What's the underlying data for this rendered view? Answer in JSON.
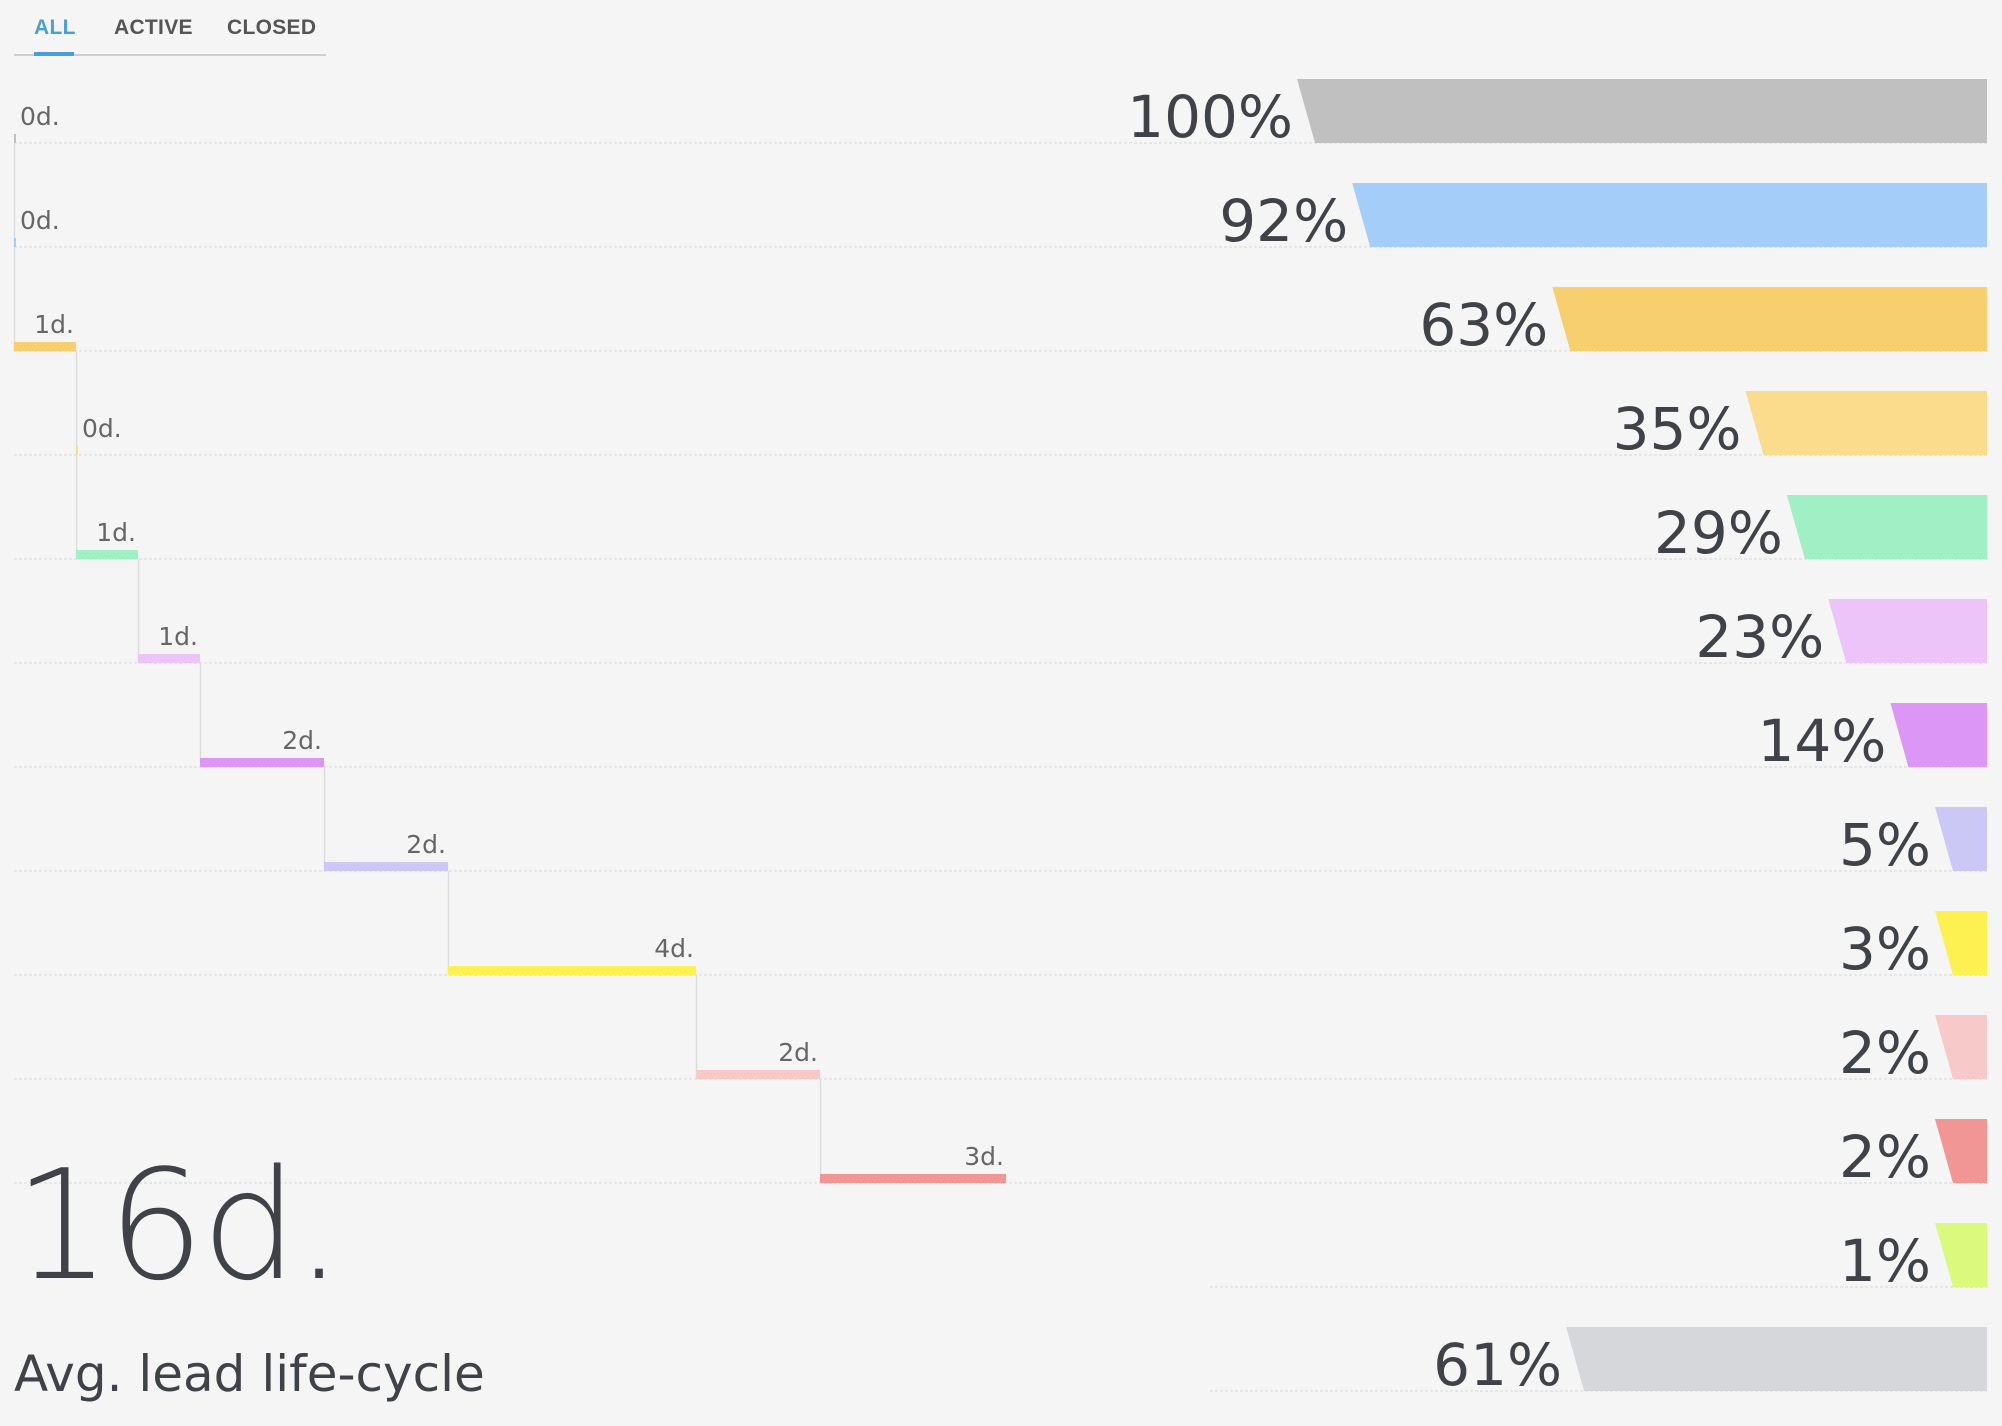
{
  "tabs": [
    {
      "label": "ALL",
      "active": true
    },
    {
      "label": "ACTIVE",
      "active": false
    },
    {
      "label": "CLOSED",
      "active": false
    }
  ],
  "summary": {
    "total": "16d.",
    "label": "Avg. lead life-cycle"
  },
  "chart_data": {
    "type": "bar",
    "stages": [
      {
        "pct_label": "100%",
        "pct": 100,
        "days_label": "0d.",
        "days": 0,
        "color": "#c0c0c0"
      },
      {
        "pct_label": "92%",
        "pct": 92,
        "days_label": "0d.",
        "days": 0,
        "color": "#a5cdf9"
      },
      {
        "pct_label": "63%",
        "pct": 63,
        "days_label": "1d.",
        "days": 1,
        "color": "#f7cf6f"
      },
      {
        "pct_label": "35%",
        "pct": 35,
        "days_label": "0d.",
        "days": 0,
        "color": "#fadc8c"
      },
      {
        "pct_label": "29%",
        "pct": 29,
        "days_label": "1d.",
        "days": 1,
        "color": "#a1f0c5"
      },
      {
        "pct_label": "23%",
        "pct": 23,
        "days_label": "1d.",
        "days": 1,
        "color": "#ecc4fa"
      },
      {
        "pct_label": "14%",
        "pct": 14,
        "days_label": "2d.",
        "days": 2,
        "color": "#dc96f5"
      },
      {
        "pct_label": "5%",
        "pct": 5,
        "days_label": "2d.",
        "days": 2,
        "color": "#cbc8f6"
      },
      {
        "pct_label": "3%",
        "pct": 3,
        "days_label": "4d.",
        "days": 4,
        "color": "#fdf051"
      },
      {
        "pct_label": "2%",
        "pct": 2,
        "days_label": "2d.",
        "days": 2,
        "color": "#f7c9c9"
      },
      {
        "pct_label": "2%",
        "pct": 2,
        "days_label": "3d.",
        "days": 3,
        "color": "#f19595"
      },
      {
        "pct_label": "1%",
        "pct": 1,
        "days_label": "",
        "days": null,
        "color": "#dbfa7d"
      },
      {
        "pct_label": "61%",
        "pct": 61,
        "days_label": "",
        "days": null,
        "color": "#d6d7da"
      }
    ]
  }
}
